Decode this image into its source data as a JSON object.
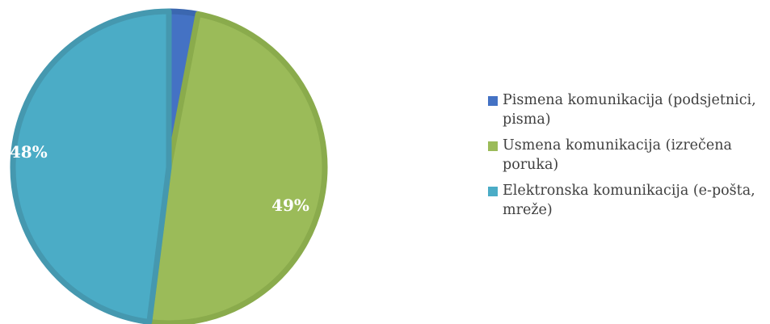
{
  "chart_data": {
    "type": "pie",
    "slices": [
      {
        "label": "Pismena komunikacija (podsjetnici, pisma)",
        "value": 3,
        "data_label": "",
        "color": "#4472C4",
        "border_color": "#3B67B0"
      },
      {
        "label": "Usmena komunikacija (izrečena poruka)",
        "value": 49,
        "data_label": "49%",
        "color": "#9BBB59",
        "border_color": "#8AAB4C"
      },
      {
        "label": "Elektronska komunikacija (e-pošta, mreže)",
        "value": 48,
        "data_label": "48%",
        "color": "#4BACC6",
        "border_color": "#4598AF"
      }
    ],
    "start_angle_deg": 0,
    "direction": "clockwise",
    "legend_position": "right"
  },
  "legend": {
    "items": [
      {
        "text": "Pismena komunikacija (podsjetnici, pisma)",
        "color": "#4472C4"
      },
      {
        "text": "Usmena komunikacija (izrečena poruka)",
        "color": "#9BBB59"
      },
      {
        "text": "Elektronska komunikacija (e-pošta, mreže)",
        "color": "#4BACC6"
      }
    ]
  }
}
